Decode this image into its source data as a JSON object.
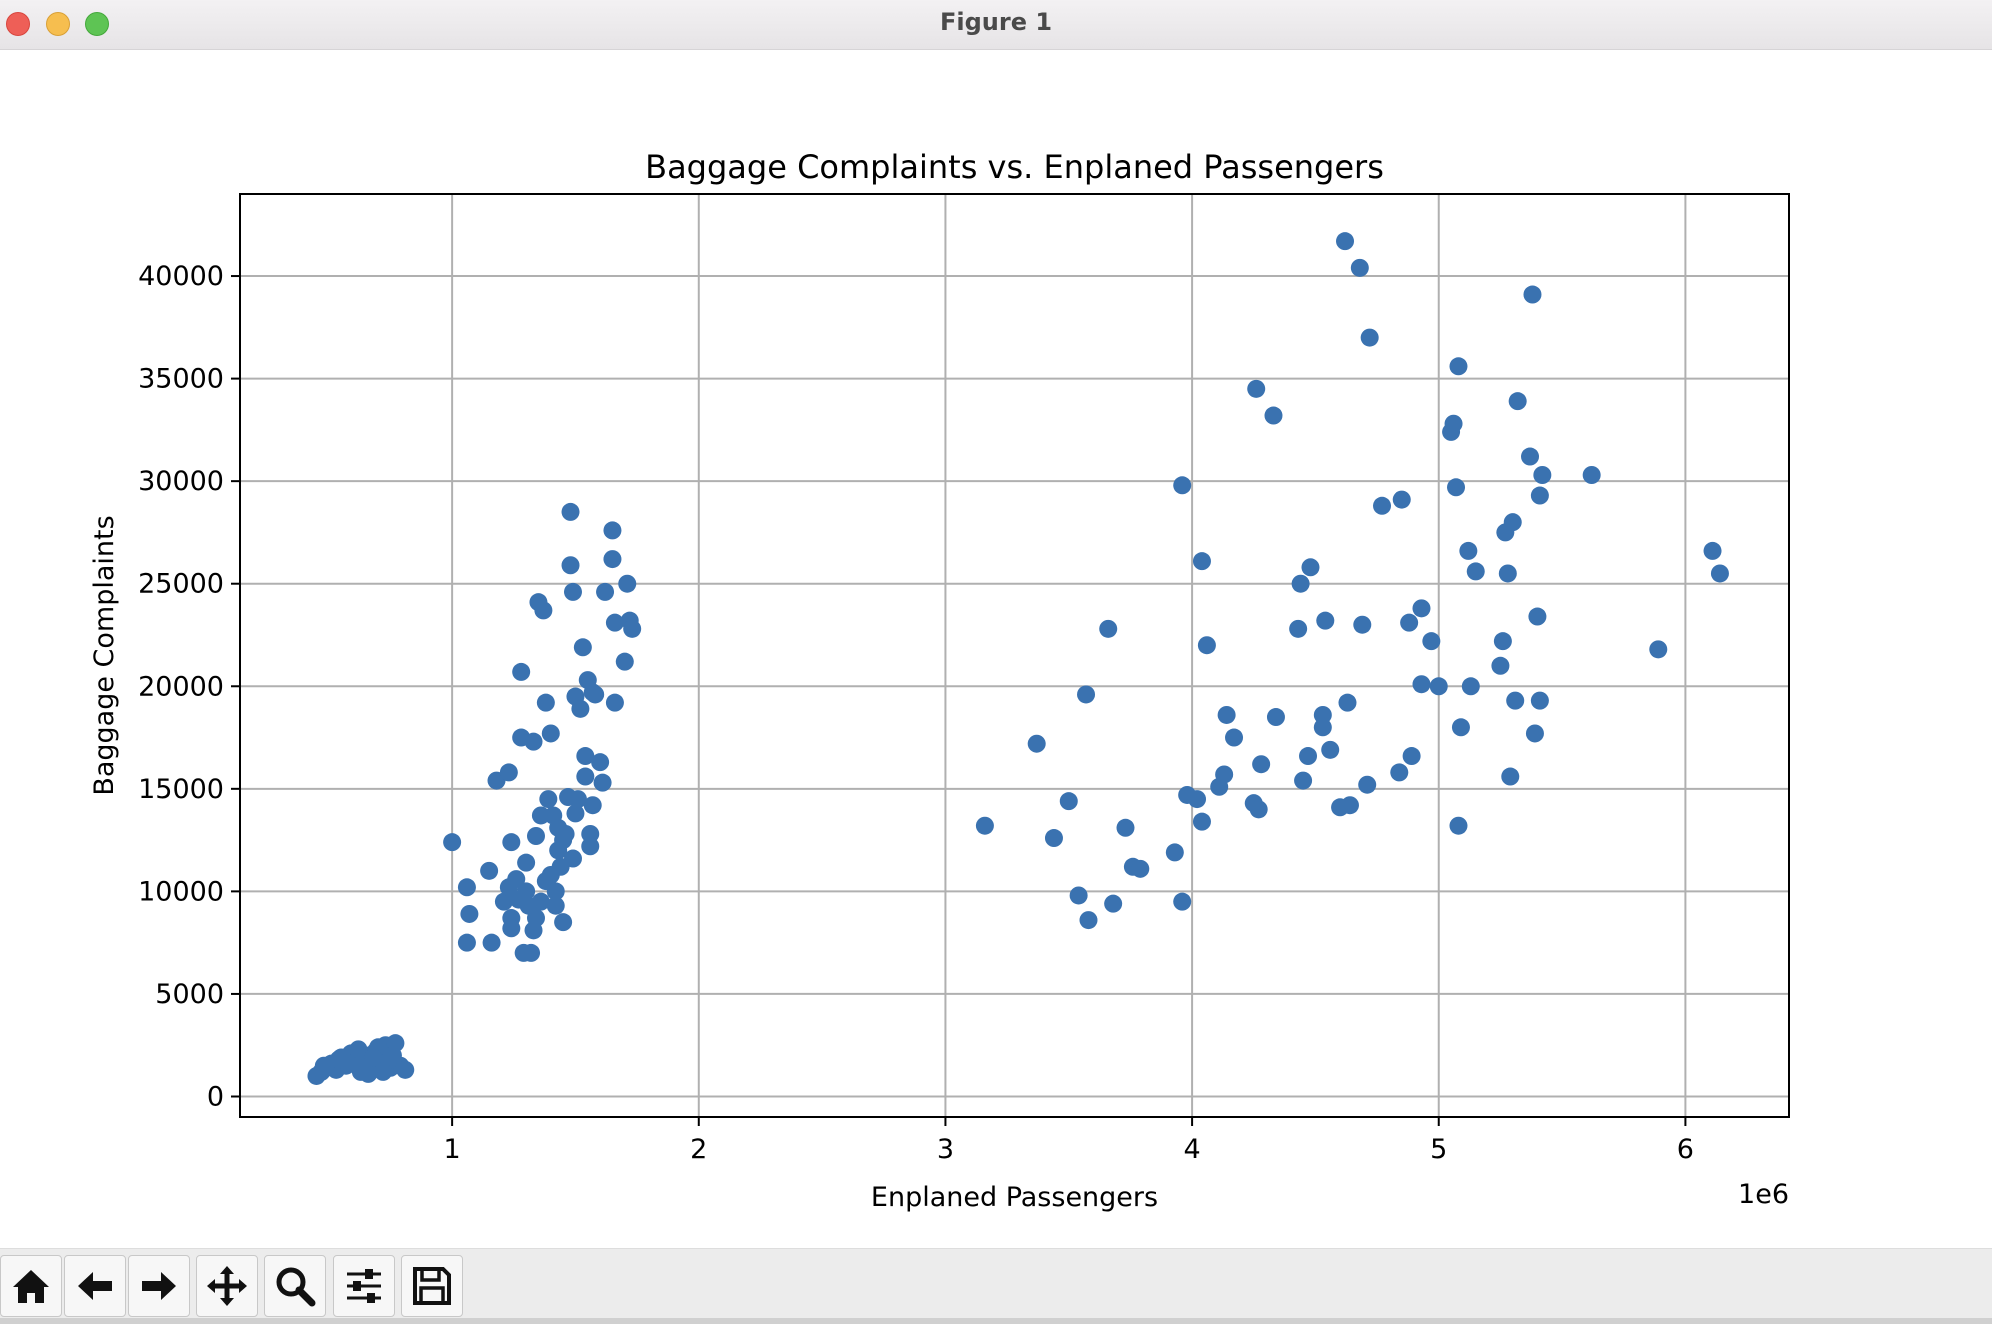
{
  "window": {
    "title": "Figure 1"
  },
  "toolbar": {
    "buttons": [
      {
        "name": "home-icon",
        "icon": "home"
      },
      {
        "name": "back-arrow-icon",
        "icon": "arrow-left"
      },
      {
        "name": "forward-arrow-icon",
        "icon": "arrow-right"
      },
      {
        "name": "pan-icon",
        "icon": "move"
      },
      {
        "name": "zoom-icon",
        "icon": "magnifier"
      },
      {
        "name": "configure-subplots-icon",
        "icon": "sliders"
      },
      {
        "name": "save-icon",
        "icon": "floppy-disk"
      }
    ]
  },
  "colors": {
    "marker": "#3a72b0",
    "grid": "#b0b0b0",
    "axis": "#000000"
  },
  "chart_data": {
    "type": "scatter",
    "title": "Baggage Complaints vs. Enplaned Passengers",
    "xlabel": "Enplaned Passengers",
    "ylabel": "Baggage Complaints",
    "x_offset_label": "1e6",
    "xlim": [
      140000,
      6420000
    ],
    "ylim": [
      -1000,
      44000
    ],
    "xticks": [
      1000000,
      2000000,
      3000000,
      4000000,
      5000000,
      6000000
    ],
    "xtick_labels": [
      "1",
      "2",
      "3",
      "4",
      "5",
      "6"
    ],
    "yticks": [
      0,
      5000,
      10000,
      15000,
      20000,
      25000,
      30000,
      35000,
      40000
    ],
    "ytick_labels": [
      "0",
      "5000",
      "10000",
      "15000",
      "20000",
      "25000",
      "30000",
      "35000",
      "40000"
    ],
    "grid": true,
    "legend": "none",
    "points": [
      [
        450000,
        1000
      ],
      [
        470000,
        1200
      ],
      [
        490000,
        1400
      ],
      [
        510000,
        1600
      ],
      [
        530000,
        1300
      ],
      [
        550000,
        1900
      ],
      [
        570000,
        1500
      ],
      [
        590000,
        2100
      ],
      [
        610000,
        1700
      ],
      [
        630000,
        1200
      ],
      [
        650000,
        2000
      ],
      [
        670000,
        1600
      ],
      [
        690000,
        2200
      ],
      [
        710000,
        1800
      ],
      [
        730000,
        2500
      ],
      [
        750000,
        1400
      ],
      [
        770000,
        2600
      ],
      [
        790000,
        1500
      ],
      [
        810000,
        1300
      ],
      [
        660000,
        1100
      ],
      [
        700000,
        2400
      ],
      [
        740000,
        1700
      ],
      [
        580000,
        1600
      ],
      [
        620000,
        2300
      ],
      [
        720000,
        1200
      ],
      [
        680000,
        1900
      ],
      [
        760000,
        2000
      ],
      [
        640000,
        1400
      ],
      [
        540000,
        1800
      ],
      [
        480000,
        1500
      ],
      [
        1000000,
        12400
      ],
      [
        1060000,
        10200
      ],
      [
        1070000,
        8900
      ],
      [
        1060000,
        7500
      ],
      [
        1150000,
        11000
      ],
      [
        1160000,
        7500
      ],
      [
        1180000,
        15400
      ],
      [
        1230000,
        15800
      ],
      [
        1240000,
        12400
      ],
      [
        1210000,
        9500
      ],
      [
        1230000,
        10200
      ],
      [
        1240000,
        8700
      ],
      [
        1240000,
        8200
      ],
      [
        1260000,
        10600
      ],
      [
        1270000,
        9600
      ],
      [
        1280000,
        20700
      ],
      [
        1280000,
        17500
      ],
      [
        1290000,
        7000
      ],
      [
        1300000,
        11400
      ],
      [
        1300000,
        10000
      ],
      [
        1310000,
        9300
      ],
      [
        1320000,
        7000
      ],
      [
        1330000,
        17300
      ],
      [
        1330000,
        8100
      ],
      [
        1340000,
        12700
      ],
      [
        1340000,
        8700
      ],
      [
        1350000,
        24100
      ],
      [
        1360000,
        13700
      ],
      [
        1360000,
        9500
      ],
      [
        1370000,
        23700
      ],
      [
        1380000,
        19200
      ],
      [
        1380000,
        10500
      ],
      [
        1390000,
        14500
      ],
      [
        1400000,
        17700
      ],
      [
        1400000,
        10800
      ],
      [
        1410000,
        13700
      ],
      [
        1420000,
        9300
      ],
      [
        1420000,
        10000
      ],
      [
        1430000,
        13100
      ],
      [
        1430000,
        12000
      ],
      [
        1440000,
        11200
      ],
      [
        1450000,
        8500
      ],
      [
        1460000,
        12800
      ],
      [
        1470000,
        14600
      ],
      [
        1480000,
        28500
      ],
      [
        1480000,
        25900
      ],
      [
        1490000,
        24600
      ],
      [
        1500000,
        19500
      ],
      [
        1500000,
        13800
      ],
      [
        1510000,
        14500
      ],
      [
        1520000,
        18900
      ],
      [
        1530000,
        21900
      ],
      [
        1540000,
        16600
      ],
      [
        1540000,
        15600
      ],
      [
        1550000,
        20300
      ],
      [
        1560000,
        12800
      ],
      [
        1560000,
        12200
      ],
      [
        1570000,
        14200
      ],
      [
        1570000,
        19700
      ],
      [
        1580000,
        19600
      ],
      [
        1600000,
        16300
      ],
      [
        1610000,
        15300
      ],
      [
        1620000,
        24600
      ],
      [
        1650000,
        27600
      ],
      [
        1650000,
        26200
      ],
      [
        1660000,
        23100
      ],
      [
        1660000,
        19200
      ],
      [
        1700000,
        21200
      ],
      [
        1710000,
        25000
      ],
      [
        1720000,
        23200
      ],
      [
        1730000,
        22800
      ],
      [
        1490000,
        11600
      ],
      [
        1450000,
        12500
      ],
      [
        3160000,
        13200
      ],
      [
        3370000,
        17200
      ],
      [
        3440000,
        12600
      ],
      [
        3500000,
        14400
      ],
      [
        3540000,
        9800
      ],
      [
        3570000,
        19600
      ],
      [
        3580000,
        8600
      ],
      [
        3660000,
        22800
      ],
      [
        3680000,
        9400
      ],
      [
        3730000,
        13100
      ],
      [
        3760000,
        11200
      ],
      [
        3790000,
        11100
      ],
      [
        3930000,
        11900
      ],
      [
        3960000,
        9500
      ],
      [
        3960000,
        29800
      ],
      [
        3980000,
        14700
      ],
      [
        4020000,
        14500
      ],
      [
        4040000,
        26100
      ],
      [
        4040000,
        13400
      ],
      [
        4060000,
        22000
      ],
      [
        4110000,
        15100
      ],
      [
        4130000,
        15700
      ],
      [
        4140000,
        18600
      ],
      [
        4170000,
        17500
      ],
      [
        4250000,
        14300
      ],
      [
        4260000,
        34500
      ],
      [
        4270000,
        14000
      ],
      [
        4280000,
        16200
      ],
      [
        4330000,
        33200
      ],
      [
        4340000,
        18500
      ],
      [
        4430000,
        22800
      ],
      [
        4440000,
        25000
      ],
      [
        4450000,
        15400
      ],
      [
        4470000,
        16600
      ],
      [
        4480000,
        25800
      ],
      [
        4530000,
        18600
      ],
      [
        4530000,
        18000
      ],
      [
        4540000,
        23200
      ],
      [
        4560000,
        16900
      ],
      [
        4600000,
        14100
      ],
      [
        4620000,
        41700
      ],
      [
        4630000,
        19200
      ],
      [
        4640000,
        14200
      ],
      [
        4680000,
        40400
      ],
      [
        4690000,
        23000
      ],
      [
        4710000,
        15200
      ],
      [
        4720000,
        37000
      ],
      [
        4770000,
        28800
      ],
      [
        4840000,
        15800
      ],
      [
        4850000,
        29100
      ],
      [
        4880000,
        23100
      ],
      [
        4890000,
        16600
      ],
      [
        4930000,
        23800
      ],
      [
        4930000,
        20100
      ],
      [
        4970000,
        22200
      ],
      [
        5000000,
        20000
      ],
      [
        5050000,
        32400
      ],
      [
        5060000,
        32800
      ],
      [
        5070000,
        29700
      ],
      [
        5080000,
        35600
      ],
      [
        5090000,
        18000
      ],
      [
        5080000,
        13200
      ],
      [
        5120000,
        26600
      ],
      [
        5130000,
        20000
      ],
      [
        5150000,
        25600
      ],
      [
        5250000,
        21000
      ],
      [
        5260000,
        22200
      ],
      [
        5270000,
        27500
      ],
      [
        5280000,
        25500
      ],
      [
        5290000,
        15600
      ],
      [
        5300000,
        28000
      ],
      [
        5310000,
        19300
      ],
      [
        5320000,
        33900
      ],
      [
        5370000,
        31200
      ],
      [
        5380000,
        39100
      ],
      [
        5390000,
        17700
      ],
      [
        5400000,
        23400
      ],
      [
        5410000,
        29300
      ],
      [
        5410000,
        19300
      ],
      [
        5420000,
        30300
      ],
      [
        5620000,
        30300
      ],
      [
        5890000,
        21800
      ],
      [
        6110000,
        26600
      ],
      [
        6140000,
        25500
      ]
    ]
  }
}
